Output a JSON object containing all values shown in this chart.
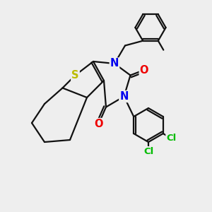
{
  "bg_color": "#eeeeee",
  "atom_colors": {
    "S": "#bbbb00",
    "N": "#0000ee",
    "O": "#ee0000",
    "Cl": "#00bb00",
    "C": "#111111"
  },
  "line_color": "#111111",
  "line_width": 1.6
}
